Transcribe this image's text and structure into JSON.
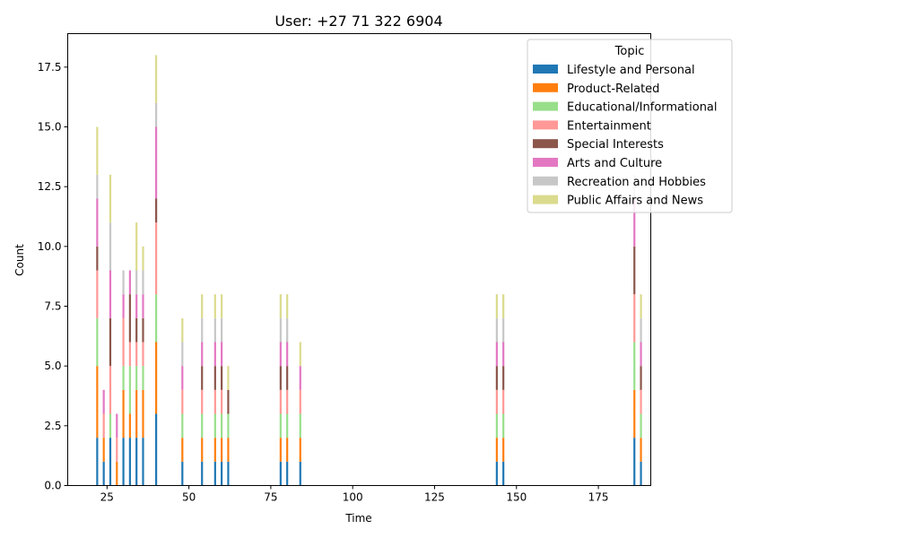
{
  "chart_data": {
    "type": "bar",
    "stacked": true,
    "title": "User: +27 71 322 6904",
    "xlabel": "Time",
    "ylabel": "Count",
    "xlim": [
      13,
      191
    ],
    "ylim": [
      0,
      18.9
    ],
    "xticks": [
      25,
      50,
      75,
      100,
      125,
      150,
      175
    ],
    "yticks": [
      0.0,
      2.5,
      5.0,
      7.5,
      10.0,
      12.5,
      15.0,
      17.5
    ],
    "ytick_labels": [
      "0.0",
      "2.5",
      "5.0",
      "7.5",
      "10.0",
      "12.5",
      "15.0",
      "17.5"
    ],
    "legend_title": "Topic",
    "legend_position": "top-right",
    "x": [
      22,
      24,
      26,
      28,
      30,
      32,
      34,
      36,
      40,
      48,
      54,
      58,
      60,
      62,
      78,
      80,
      84,
      144,
      146,
      186,
      188
    ],
    "series": [
      {
        "name": "Lifestyle and Personal",
        "color": "#1f77b4",
        "values": [
          2,
          1,
          2,
          0,
          2,
          2,
          2,
          2,
          3,
          1,
          1,
          1,
          1,
          1,
          1,
          1,
          1,
          1,
          1,
          2,
          1
        ]
      },
      {
        "name": "Product-Related",
        "color": "#ff7f0e",
        "values": [
          3,
          1,
          0,
          1,
          2,
          1,
          2,
          2,
          3,
          1,
          1,
          1,
          1,
          1,
          1,
          1,
          1,
          1,
          1,
          2,
          1
        ]
      },
      {
        "name": "Educational/Informational",
        "color": "#98df8a",
        "values": [
          2,
          0,
          1,
          0,
          1,
          2,
          1,
          1,
          2,
          1,
          1,
          1,
          1,
          1,
          1,
          1,
          1,
          1,
          1,
          2,
          1
        ]
      },
      {
        "name": "Entertainment",
        "color": "#ff9896",
        "values": [
          2,
          1,
          2,
          1,
          2,
          1,
          1,
          1,
          3,
          1,
          1,
          1,
          1,
          0,
          1,
          1,
          1,
          1,
          1,
          2,
          1
        ]
      },
      {
        "name": "Special Interests",
        "color": "#8c564b",
        "values": [
          1,
          0,
          2,
          0,
          0,
          2,
          1,
          1,
          1,
          0,
          1,
          1,
          1,
          1,
          1,
          1,
          0,
          1,
          1,
          2,
          1
        ]
      },
      {
        "name": "Arts and Culture",
        "color": "#e377c2",
        "values": [
          2,
          1,
          2,
          1,
          1,
          1,
          1,
          1,
          3,
          1,
          1,
          1,
          1,
          0,
          1,
          1,
          1,
          1,
          1,
          2,
          1
        ]
      },
      {
        "name": "Recreation and Hobbies",
        "color": "#c7c7c7",
        "values": [
          1,
          0,
          2,
          0,
          1,
          0,
          1,
          1,
          1,
          1,
          1,
          1,
          1,
          0,
          1,
          1,
          0,
          1,
          1,
          1,
          1
        ]
      },
      {
        "name": "Public Affairs and News",
        "color": "#dbdb8d",
        "values": [
          2,
          0,
          2,
          0,
          0,
          0,
          2,
          1,
          2,
          1,
          1,
          1,
          1,
          1,
          1,
          1,
          1,
          1,
          1,
          0,
          1
        ]
      }
    ]
  }
}
